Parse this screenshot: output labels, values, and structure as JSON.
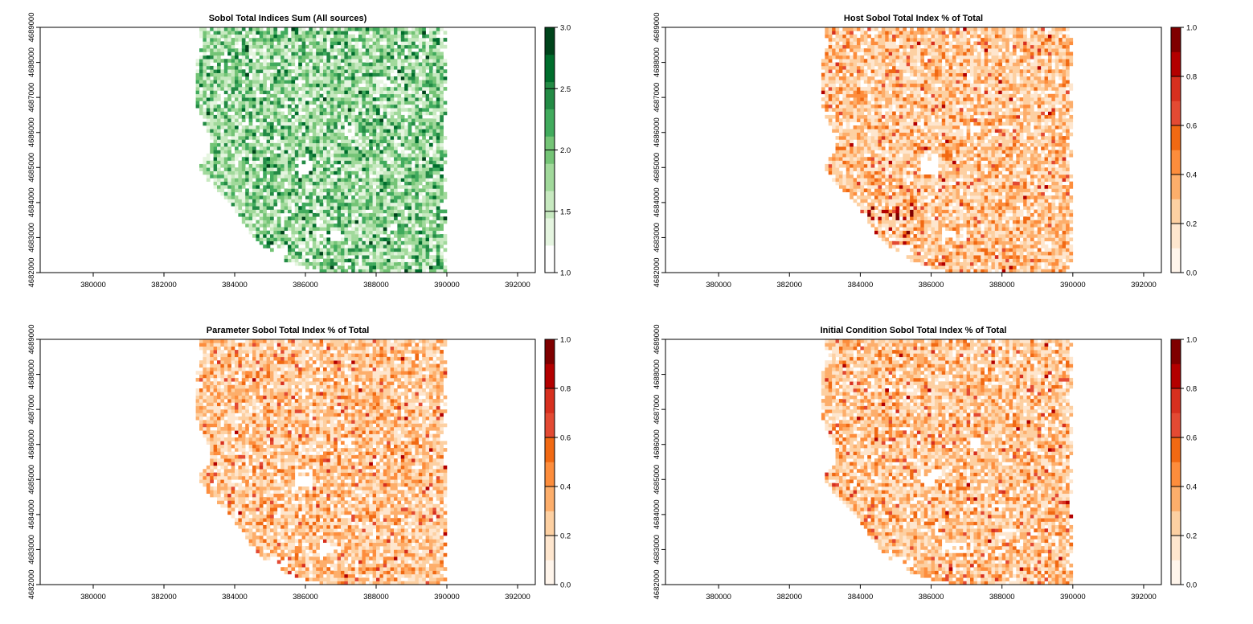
{
  "chart_data": [
    {
      "type": "heatmap",
      "title": "Sobol Total Indices Sum (All sources)",
      "x_ticks": [
        "380000",
        "382000",
        "384000",
        "386000",
        "388000",
        "390000",
        "392000"
      ],
      "y_ticks": [
        "4682000",
        "4683000",
        "4684000",
        "4685000",
        "4686000",
        "4687000",
        "4688000",
        "4689000"
      ],
      "xlim": [
        378500,
        392500
      ],
      "ylim": [
        4682000,
        4689000
      ],
      "colorbar": {
        "range": [
          1.0,
          3.0
        ],
        "tick_labels": [
          "1.0",
          "1.5",
          "2.0",
          "2.5",
          "3.0"
        ],
        "palette": [
          "#ffffff",
          "#e5f5e0",
          "#c7e9c0",
          "#a1d99b",
          "#74c476",
          "#41ab5d",
          "#238b45",
          "#006d2c",
          "#00441b"
        ]
      },
      "data_extent": {
        "x": [
          382800,
          390000
        ],
        "y": [
          4682000,
          4689000
        ]
      }
    },
    {
      "type": "heatmap",
      "title": "Host Sobol Total Index % of Total",
      "x_ticks": [
        "380000",
        "382000",
        "384000",
        "386000",
        "388000",
        "390000",
        "392000"
      ],
      "y_ticks": [
        "4682000",
        "4683000",
        "4684000",
        "4685000",
        "4686000",
        "4687000",
        "4688000",
        "4689000"
      ],
      "xlim": [
        378500,
        392500
      ],
      "ylim": [
        4682000,
        4689000
      ],
      "colorbar": {
        "range": [
          0.0,
          1.0
        ],
        "tick_labels": [
          "0.0",
          "0.2",
          "0.4",
          "0.6",
          "0.8",
          "1.0"
        ],
        "palette": [
          "#fff5eb",
          "#fee6ce",
          "#fdd0a2",
          "#fdae6b",
          "#fd8d3c",
          "#f16913",
          "#e34a33",
          "#d7301f",
          "#b30000",
          "#7f0000"
        ]
      },
      "data_extent": {
        "x": [
          382800,
          390000
        ],
        "y": [
          4682000,
          4689000
        ]
      }
    },
    {
      "type": "heatmap",
      "title": "Parameter Sobol Total Index % of Total",
      "x_ticks": [
        "380000",
        "382000",
        "384000",
        "386000",
        "388000",
        "390000",
        "392000"
      ],
      "y_ticks": [
        "4682000",
        "4683000",
        "4684000",
        "4685000",
        "4686000",
        "4687000",
        "4688000",
        "4689000"
      ],
      "xlim": [
        378500,
        392500
      ],
      "ylim": [
        4682000,
        4689000
      ],
      "colorbar": {
        "range": [
          0.0,
          1.0
        ],
        "tick_labels": [
          "0.0",
          "0.2",
          "0.4",
          "0.6",
          "0.8",
          "1.0"
        ],
        "palette": [
          "#fff5eb",
          "#fee6ce",
          "#fdd0a2",
          "#fdae6b",
          "#fd8d3c",
          "#f16913",
          "#e34a33",
          "#d7301f",
          "#b30000",
          "#7f0000"
        ]
      },
      "data_extent": {
        "x": [
          382800,
          390000
        ],
        "y": [
          4682000,
          4689000
        ]
      }
    },
    {
      "type": "heatmap",
      "title": "Initial Condition Sobol Total Index % of Total",
      "x_ticks": [
        "380000",
        "382000",
        "384000",
        "386000",
        "388000",
        "390000",
        "392000"
      ],
      "y_ticks": [
        "4682000",
        "4683000",
        "4684000",
        "4685000",
        "4686000",
        "4687000",
        "4688000",
        "4689000"
      ],
      "xlim": [
        378500,
        392500
      ],
      "ylim": [
        4682000,
        4689000
      ],
      "colorbar": {
        "range": [
          0.0,
          1.0
        ],
        "tick_labels": [
          "0.0",
          "0.2",
          "0.4",
          "0.6",
          "0.8",
          "1.0"
        ],
        "palette": [
          "#fff5eb",
          "#fee6ce",
          "#fdd0a2",
          "#fdae6b",
          "#fd8d3c",
          "#f16913",
          "#e34a33",
          "#d7301f",
          "#b30000",
          "#7f0000"
        ]
      },
      "data_extent": {
        "x": [
          382800,
          390000
        ],
        "y": [
          4682000,
          4689000
        ]
      }
    }
  ]
}
